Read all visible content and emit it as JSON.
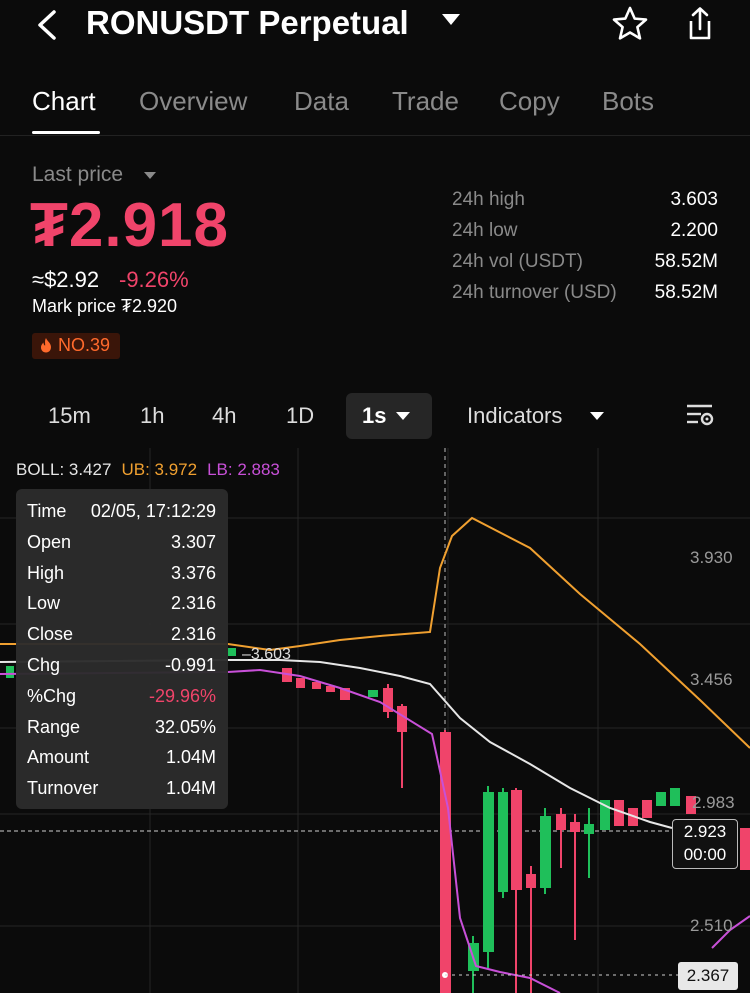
{
  "header": {
    "title": "RONUSDT Perpetual",
    "back_icon": "chevron-left-icon",
    "favorite_icon": "star-icon",
    "share_icon": "share-icon"
  },
  "tabs": [
    "Chart",
    "Overview",
    "Data",
    "Trade",
    "Copy",
    "Bots"
  ],
  "active_tab": "Chart",
  "ticker": {
    "last_price_label": "Last price",
    "price": "₮2.918",
    "usd_price": "≈$2.92",
    "change_pct": "-9.26%",
    "mark_price": "Mark price ₮2.920",
    "rank_badge": "NO.39",
    "stats": [
      {
        "label": "24h high",
        "value": "3.603"
      },
      {
        "label": "24h low",
        "value": "2.200"
      },
      {
        "label": "24h vol (USDT)",
        "value": "58.52M"
      },
      {
        "label": "24h turnover (USD)",
        "value": "58.52M"
      }
    ]
  },
  "intervals": {
    "options": [
      "15m",
      "1h",
      "4h",
      "1D"
    ],
    "selected": "1s",
    "indicators_label": "Indicators"
  },
  "boll": {
    "mid": "BOLL: 3.427",
    "upper": "UB: 3.972",
    "lower": "LB: 2.883"
  },
  "tooltip": [
    {
      "label": "Time",
      "value": "02/05, 17:12:29"
    },
    {
      "label": "Open",
      "value": "3.307"
    },
    {
      "label": "High",
      "value": "3.376"
    },
    {
      "label": "Low",
      "value": "2.316"
    },
    {
      "label": "Close",
      "value": "2.316"
    },
    {
      "label": "Chg",
      "value": "-0.991"
    },
    {
      "label": "%Chg",
      "value": "-29.96%"
    },
    {
      "label": "Range",
      "value": "32.05%"
    },
    {
      "label": "Amount",
      "value": "1.04M"
    },
    {
      "label": "Turnover",
      "value": "1.04M"
    }
  ],
  "axis": {
    "labels": [
      "3.930",
      "3.456",
      "2.983",
      "2.510"
    ],
    "current_price": "2.923",
    "countdown": "00:00",
    "low_marker": "2.367",
    "high_marker": "3.603"
  },
  "colors": {
    "up": "#1fbf5a",
    "down": "#f0446a",
    "boll_mid": "#e6e6e6",
    "boll_upper": "#f0a030",
    "boll_lower": "#c850d8"
  }
}
